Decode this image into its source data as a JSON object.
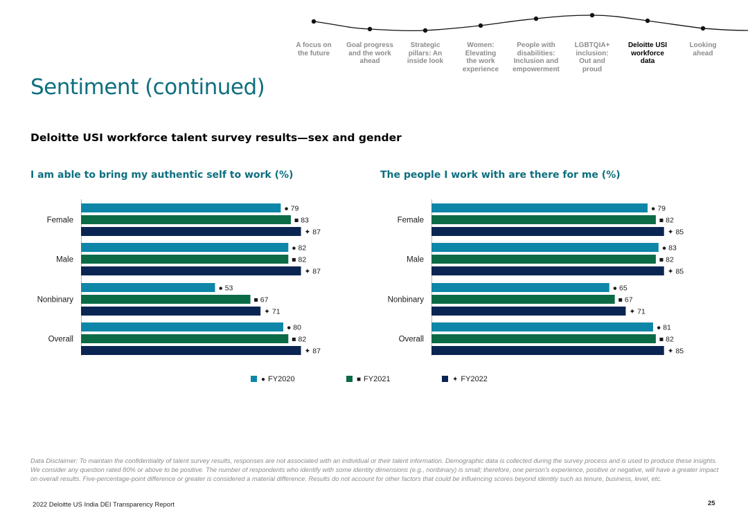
{
  "nav": {
    "items": [
      {
        "label": "A focus on the future",
        "lines": [
          "A focus on",
          "the future"
        ],
        "active": false
      },
      {
        "label": "Goal progress and the work ahead",
        "lines": [
          "Goal progress",
          "and the work",
          "ahead"
        ],
        "active": false
      },
      {
        "label": "Strategic pillars: An inside look",
        "lines": [
          "Strategic",
          "pillars: An",
          "inside look"
        ],
        "active": false
      },
      {
        "label": "Women: Elevating the work experience",
        "lines": [
          "Women:",
          "Elevating",
          "the work",
          "experience"
        ],
        "active": false
      },
      {
        "label": "People with disabilities: Inclusion and empowerment",
        "lines": [
          "People with",
          "disabilities:",
          "Inclusion and",
          "empowerment"
        ],
        "active": false
      },
      {
        "label": "LGBTQIA+ inclusion: Out and proud",
        "lines": [
          "LGBTQIA+",
          "inclusion:",
          "Out and",
          "proud"
        ],
        "active": false
      },
      {
        "label": "Deloitte USI workforce data",
        "lines": [
          "Deloitte USI",
          "workforce",
          "data"
        ],
        "active": true
      },
      {
        "label": "Looking ahead",
        "lines": [
          "Looking",
          "ahead"
        ],
        "active": false
      }
    ]
  },
  "page": {
    "title": "Sentiment (continued)",
    "survey_heading": "Deloitte USI workforce talent survey results—sex and gender"
  },
  "colors": {
    "fy2020": "#0e86a8",
    "fy2021": "#0c6b47",
    "fy2022": "#0b2552",
    "title_teal": "#0d6f7f",
    "nav_inactive": "#8c8c8c"
  },
  "chart_data": [
    {
      "type": "bar",
      "orientation": "horizontal",
      "title": "I am able to bring my authentic self to work (%)",
      "categories": [
        "Female",
        "Male",
        "Nonbinary",
        "Overall"
      ],
      "series": [
        {
          "name": "FY2020",
          "marker": "●",
          "values": [
            79,
            82,
            53,
            80
          ]
        },
        {
          "name": "FY2021",
          "marker": "■",
          "values": [
            83,
            82,
            67,
            82
          ]
        },
        {
          "name": "FY2022",
          "marker": "✦",
          "values": [
            87,
            87,
            71,
            87
          ]
        }
      ],
      "xlim": [
        0,
        100
      ],
      "xlabel": "",
      "ylabel": "",
      "grid": false,
      "legend": "bottom-center"
    },
    {
      "type": "bar",
      "orientation": "horizontal",
      "title": "The people I work with are there for me (%)",
      "categories": [
        "Female",
        "Male",
        "Nonbinary",
        "Overall"
      ],
      "series": [
        {
          "name": "FY2020",
          "marker": "●",
          "values": [
            79,
            83,
            65,
            81
          ]
        },
        {
          "name": "FY2021",
          "marker": "■",
          "values": [
            82,
            82,
            67,
            82
          ]
        },
        {
          "name": "FY2022",
          "marker": "✦",
          "values": [
            85,
            85,
            71,
            85
          ]
        }
      ],
      "xlim": [
        0,
        100
      ],
      "xlabel": "",
      "ylabel": "",
      "grid": false,
      "legend": "bottom-center"
    }
  ],
  "legend": [
    {
      "name": "FY2020",
      "marker": "●"
    },
    {
      "name": "FY2021",
      "marker": "■"
    },
    {
      "name": "FY2022",
      "marker": "✦"
    }
  ],
  "disclaimer": "Data Disclaimer: To maintain the confidentiality of talent survey results, responses are not associated with an individual or their talent information. Demographic data is collected during the survey process and is used to produce these insights. We consider any question rated 80% or above to be positive. The number of respondents who identify with some identity dimensions (e.g., nonbinary) is small; therefore, one person's experience, positive or negative, will have a greater impact on overall results. Five-percentage-point difference or greater is considered a material difference. Results do not account for other factors that could be influencing scores beyond identity such as tenure, business, level, etc.",
  "footer": {
    "report": "2022 Deloitte US India DEI Transparency Report",
    "page_number": "25"
  }
}
